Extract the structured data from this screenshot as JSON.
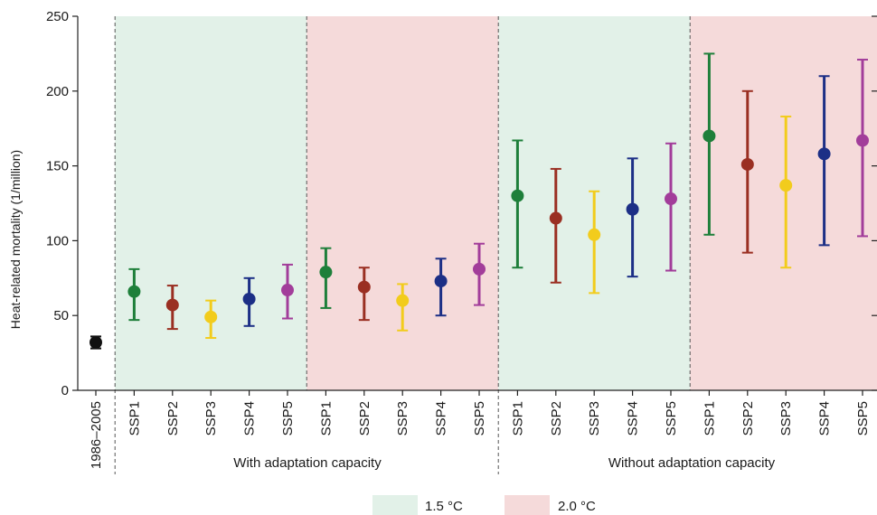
{
  "chart_data": {
    "type": "errorbar",
    "ylabel": "Heat-related mortality (1/million)",
    "ylim": [
      0,
      250
    ],
    "yticks": [
      0,
      50,
      100,
      150,
      200,
      250
    ],
    "groups": {
      "with": "With adaptation capacity",
      "without": "Without adaptation capacity"
    },
    "legend": {
      "a": "1.5 °C",
      "b": "2.0 °C"
    },
    "colors": {
      "region_a": "#e2f1e8",
      "region_b": "#f5dada",
      "baseline": "#111111",
      "SSP1": "#1e7f3a",
      "SSP2": "#9a2f22",
      "SSP3": "#f2cc1c",
      "SSP4": "#1c2f86",
      "SSP5": "#a23d9a"
    },
    "points": [
      {
        "label": "1986–2005",
        "key": "baseline",
        "center": 32,
        "low": 28,
        "high": 36
      },
      {
        "label": "SSP1",
        "key": "SSP1",
        "center": 66,
        "low": 47,
        "high": 81
      },
      {
        "label": "SSP2",
        "key": "SSP2",
        "center": 57,
        "low": 41,
        "high": 70
      },
      {
        "label": "SSP3",
        "key": "SSP3",
        "center": 49,
        "low": 35,
        "high": 60
      },
      {
        "label": "SSP4",
        "key": "SSP4",
        "center": 61,
        "low": 43,
        "high": 75
      },
      {
        "label": "SSP5",
        "key": "SSP5",
        "center": 67,
        "low": 48,
        "high": 84
      },
      {
        "label": "SSP1",
        "key": "SSP1",
        "center": 79,
        "low": 55,
        "high": 95
      },
      {
        "label": "SSP2",
        "key": "SSP2",
        "center": 69,
        "low": 47,
        "high": 82
      },
      {
        "label": "SSP3",
        "key": "SSP3",
        "center": 60,
        "low": 40,
        "high": 71
      },
      {
        "label": "SSP4",
        "key": "SSP4",
        "center": 73,
        "low": 50,
        "high": 88
      },
      {
        "label": "SSP5",
        "key": "SSP5",
        "center": 81,
        "low": 57,
        "high": 98
      },
      {
        "label": "SSP1",
        "key": "SSP1",
        "center": 130,
        "low": 82,
        "high": 167
      },
      {
        "label": "SSP2",
        "key": "SSP2",
        "center": 115,
        "low": 72,
        "high": 148
      },
      {
        "label": "SSP3",
        "key": "SSP3",
        "center": 104,
        "low": 65,
        "high": 133
      },
      {
        "label": "SSP4",
        "key": "SSP4",
        "center": 121,
        "low": 76,
        "high": 155
      },
      {
        "label": "SSP5",
        "key": "SSP5",
        "center": 128,
        "low": 80,
        "high": 165
      },
      {
        "label": "SSP1",
        "key": "SSP1",
        "center": 170,
        "low": 104,
        "high": 225
      },
      {
        "label": "SSP2",
        "key": "SSP2",
        "center": 151,
        "low": 92,
        "high": 200
      },
      {
        "label": "SSP3",
        "key": "SSP3",
        "center": 137,
        "low": 82,
        "high": 183
      },
      {
        "label": "SSP4",
        "key": "SSP4",
        "center": 158,
        "low": 97,
        "high": 210
      },
      {
        "label": "SSP5",
        "key": "SSP5",
        "center": 167,
        "low": 103,
        "high": 221
      }
    ]
  }
}
